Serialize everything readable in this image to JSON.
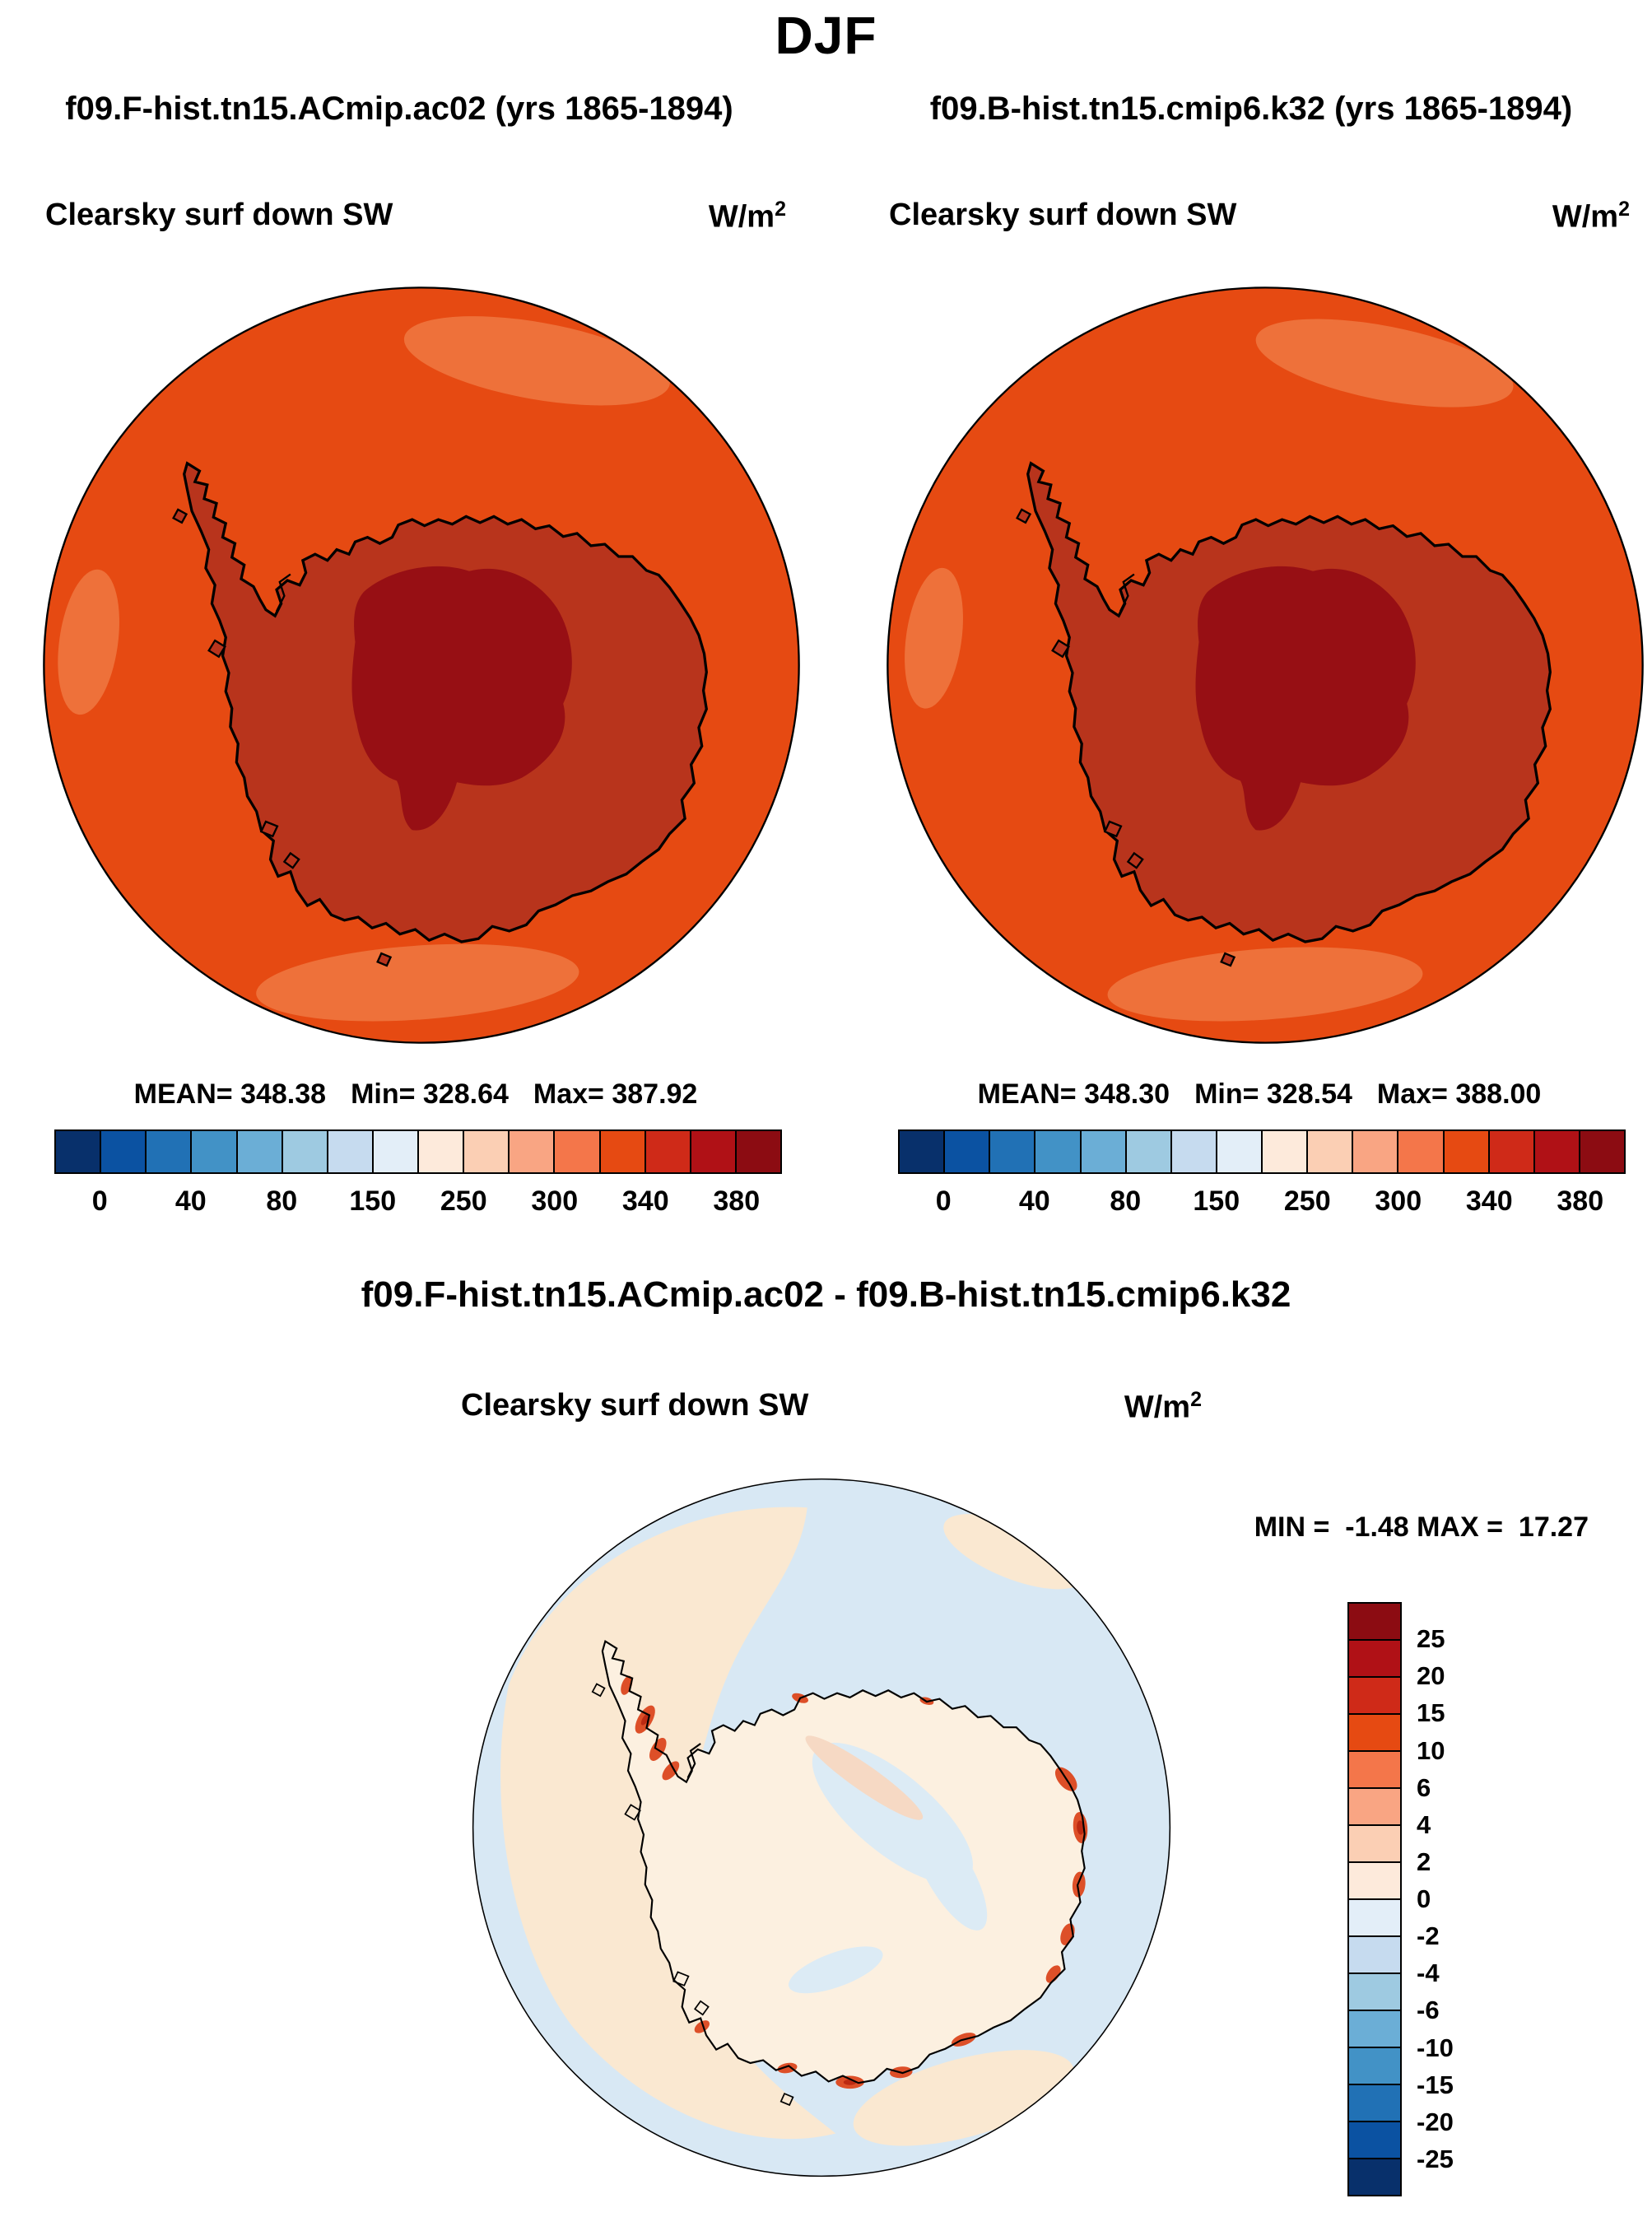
{
  "season_title": "DJF",
  "colors": {
    "ocean": "#e64a12",
    "ocean_light": "#ee713a",
    "continent": "#b8341c",
    "plateau": "#970f14",
    "coast_line": "#000000",
    "diff_bg": "#d8e8f4",
    "diff_cream": "#fae8d1",
    "diff_land": "#fcf0e0",
    "diff_land_blue": "#dcebf5",
    "diff_red": "#dd4f28",
    "diff_red_dark": "#bc2a12",
    "diff_red_light": "#f6d9c4"
  },
  "panels": {
    "left": {
      "subtitle": "f09.F-hist.tn15.ACmip.ac02 (yrs 1865-1894)",
      "field_label": "Clearsky surf down SW",
      "units_base": "W/m",
      "units_exp": "2",
      "stats": {
        "mean": "MEAN= 348.38",
        "min": "Min= 328.64",
        "max": "Max= 387.92"
      }
    },
    "right": {
      "subtitle": "f09.B-hist.tn15.cmip6.k32 (yrs 1865-1894)",
      "field_label": "Clearsky surf down SW",
      "units_base": "W/m",
      "units_exp": "2",
      "stats": {
        "mean": "MEAN= 348.30",
        "min": "Min= 328.54",
        "max": "Max= 388.00"
      }
    },
    "diff": {
      "title": "f09.F-hist.tn15.ACmip.ac02 - f09.B-hist.tn15.cmip6.k32",
      "field_label": "Clearsky surf down SW",
      "units_base": "W/m",
      "units_exp": "2",
      "minmax": "MIN =  -1.48 MAX =  17.27"
    }
  },
  "colorbar_h": {
    "colors": [
      "#08306b",
      "#0b52a2",
      "#2171b5",
      "#4292c6",
      "#6baed6",
      "#9ecae1",
      "#c6dbef",
      "#e3eef8",
      "#fdeadb",
      "#fbcfb4",
      "#f9a583",
      "#f4764a",
      "#e64a12",
      "#cf2a18",
      "#b01116",
      "#8c0c12"
    ],
    "tick_labels": [
      "0",
      "40",
      "80",
      "150",
      "250",
      "300",
      "340",
      "380"
    ],
    "tick_slots": [
      1,
      3,
      5,
      7,
      9,
      11,
      13,
      15
    ]
  },
  "colorbar_v": {
    "colors": [
      "#8c0c12",
      "#b01116",
      "#cf2a18",
      "#e64a12",
      "#f4764a",
      "#f9a583",
      "#fbcfb4",
      "#fdeadb",
      "#e3eef8",
      "#c6dbef",
      "#9ecae1",
      "#6baed6",
      "#4292c6",
      "#2171b5",
      "#0b52a2",
      "#08306b"
    ],
    "tick_labels": [
      "25",
      "20",
      "15",
      "10",
      "6",
      "4",
      "2",
      "0",
      "-2",
      "-4",
      "-6",
      "-10",
      "-15",
      "-20",
      "-25"
    ]
  },
  "chart_data": [
    {
      "type": "heatmap",
      "subtype": "polar-stereographic-filled-contour-map",
      "region": "Antarctica / Southern Ocean (south polar view)",
      "season": "DJF",
      "title": "Clearsky surf down SW",
      "case": "f09.F-hist.tn15.ACmip.ac02",
      "years": "1865-1894",
      "units": "W/m^2",
      "stats": {
        "mean": 348.38,
        "min": 328.64,
        "max": 387.92
      },
      "legend_ticks": [
        0,
        40,
        80,
        150,
        250,
        300,
        340,
        380
      ],
      "legend_position": "bottom",
      "values_summary": "Ocean ring about 330-360 W/m^2 (orange-red), Antarctic continent about 360-380 (dark red), interior plateau above 380 (darkest red)"
    },
    {
      "type": "heatmap",
      "subtype": "polar-stereographic-filled-contour-map",
      "region": "Antarctica / Southern Ocean (south polar view)",
      "season": "DJF",
      "title": "Clearsky surf down SW",
      "case": "f09.B-hist.tn15.cmip6.k32",
      "years": "1865-1894",
      "units": "W/m^2",
      "stats": {
        "mean": 348.3,
        "min": 328.54,
        "max": 388.0
      },
      "legend_ticks": [
        0,
        40,
        80,
        150,
        250,
        300,
        340,
        380
      ],
      "legend_position": "bottom",
      "values_summary": "Visually nearly identical to the first case"
    },
    {
      "type": "heatmap",
      "subtype": "polar-stereographic-filled-contour-map",
      "region": "Antarctica / Southern Ocean (south polar view)",
      "season": "DJF",
      "title": "Clearsky surf down SW difference",
      "case": "f09.F-hist.tn15.ACmip.ac02 - f09.B-hist.tn15.cmip6.k32",
      "units": "W/m^2",
      "stats": {
        "min": -1.48,
        "max": 17.27
      },
      "legend_ticks": [
        25,
        20,
        15,
        10,
        6,
        4,
        2,
        0,
        -2,
        -4,
        -6,
        -10,
        -15,
        -20,
        -25
      ],
      "legend_position": "right",
      "values_summary": "Mostly near zero: pale blue (0 to -2) ocean with cream (0 to +2) patches; positive red spots up to ~17 W/m^2 hugging the Antarctic coastline"
    }
  ]
}
